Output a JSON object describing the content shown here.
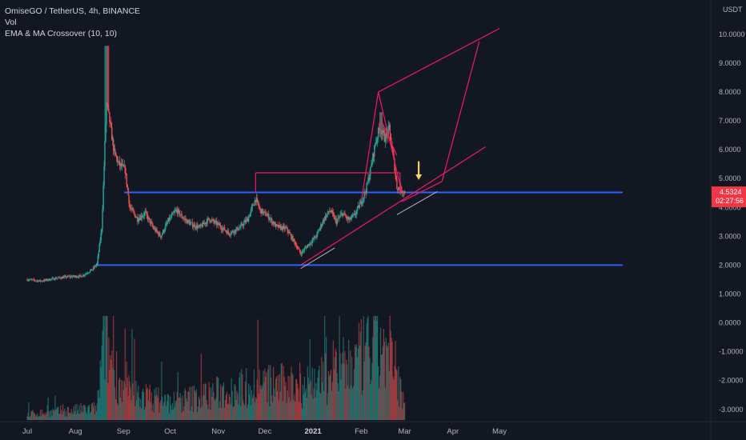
{
  "legend": {
    "symbol_line": "OmiseGO / TetherUS, 4h, BINANCE",
    "indicator_1": "Vol",
    "indicator_2": "EMA & MA Crossover (10, 10)"
  },
  "colors": {
    "background": "#131722",
    "up": "#26a69a",
    "down": "#ef5350",
    "horizontal_level": "#2962ff",
    "drawing": "#e91e63",
    "arrow": "#f5d06f",
    "price_tag": "#f23645",
    "trend_support": "#b2b5be"
  },
  "price_axis": {
    "unit": "USDT",
    "ticks": [
      "10.0000",
      "9.0000",
      "8.0000",
      "7.0000",
      "6.0000",
      "5.0000",
      "4.0000",
      "3.0000",
      "2.0000",
      "1.0000",
      "0.0000",
      "-1.0000",
      "-2.0000",
      "-3.0000"
    ]
  },
  "price_tag": {
    "price": "4.5324",
    "countdown": "02:27:56"
  },
  "chart_data": {
    "type": "candlestick",
    "x_axis_ticks": [
      {
        "label": "Jul",
        "month": "2020-07"
      },
      {
        "label": "Aug",
        "month": "2020-08"
      },
      {
        "label": "Sep",
        "month": "2020-09"
      },
      {
        "label": "Oct",
        "month": "2020-10"
      },
      {
        "label": "Nov",
        "month": "2020-11"
      },
      {
        "label": "Dec",
        "month": "2020-12"
      },
      {
        "label": "2021",
        "month": "2021-01",
        "bold": true
      },
      {
        "label": "Feb",
        "month": "2021-02"
      },
      {
        "label": "Mar",
        "month": "2021-03"
      },
      {
        "label": "Apr",
        "month": "2021-04"
      },
      {
        "label": "May",
        "month": "2021-05"
      }
    ],
    "y_range": [
      -3.2,
      10.3
    ],
    "price_path": [
      [
        "2020-07-01",
        1.5
      ],
      [
        "2020-07-10",
        1.45
      ],
      [
        "2020-07-20",
        1.55
      ],
      [
        "2020-07-28",
        1.6
      ],
      [
        "2020-08-05",
        1.62
      ],
      [
        "2020-08-12",
        1.85
      ],
      [
        "2020-08-15",
        2.05
      ],
      [
        "2020-08-18",
        3.3
      ],
      [
        "2020-08-21",
        7.6
      ],
      [
        "2020-08-23",
        7.0
      ],
      [
        "2020-08-26",
        5.9
      ],
      [
        "2020-08-29",
        5.5
      ],
      [
        "2020-09-02",
        5.3
      ],
      [
        "2020-09-05",
        4.0
      ],
      [
        "2020-09-10",
        3.6
      ],
      [
        "2020-09-15",
        3.8
      ],
      [
        "2020-09-20",
        3.3
      ],
      [
        "2020-09-25",
        3.0
      ],
      [
        "2020-09-30",
        3.55
      ],
      [
        "2020-10-05",
        3.9
      ],
      [
        "2020-10-10",
        3.6
      ],
      [
        "2020-10-15",
        3.4
      ],
      [
        "2020-10-20",
        3.3
      ],
      [
        "2020-10-26",
        3.6
      ],
      [
        "2020-11-01",
        3.4
      ],
      [
        "2020-11-08",
        3.1
      ],
      [
        "2020-11-15",
        3.3
      ],
      [
        "2020-11-20",
        3.6
      ],
      [
        "2020-11-25",
        4.3
      ],
      [
        "2020-11-28",
        3.9
      ],
      [
        "2020-12-03",
        3.7
      ],
      [
        "2020-12-08",
        3.35
      ],
      [
        "2020-12-15",
        3.25
      ],
      [
        "2020-12-20",
        2.8
      ],
      [
        "2020-12-24",
        2.4
      ],
      [
        "2020-12-28",
        2.65
      ],
      [
        "2021-01-03",
        3.0
      ],
      [
        "2021-01-08",
        3.6
      ],
      [
        "2021-01-12",
        3.9
      ],
      [
        "2021-01-16",
        3.5
      ],
      [
        "2021-01-20",
        3.8
      ],
      [
        "2021-01-24",
        3.55
      ],
      [
        "2021-01-28",
        3.75
      ],
      [
        "2021-02-01",
        4.2
      ],
      [
        "2021-02-04",
        4.6
      ],
      [
        "2021-02-07",
        5.3
      ],
      [
        "2021-02-10",
        6.2
      ],
      [
        "2021-02-13",
        6.8
      ],
      [
        "2021-02-16",
        6.4
      ],
      [
        "2021-02-19",
        6.7
      ],
      [
        "2021-02-22",
        5.6
      ],
      [
        "2021-02-24",
        4.7
      ],
      [
        "2021-02-27",
        4.6
      ],
      [
        "2021-03-01",
        4.5324
      ]
    ],
    "volume_path": [
      [
        "2020-07-01",
        0.05
      ],
      [
        "2020-08-15",
        0.1
      ],
      [
        "2020-08-20",
        0.8
      ],
      [
        "2020-08-23",
        0.55
      ],
      [
        "2020-09-01",
        0.25
      ],
      [
        "2020-10-01",
        0.15
      ],
      [
        "2020-11-25",
        0.3
      ],
      [
        "2020-12-24",
        0.3
      ],
      [
        "2021-01-10",
        0.35
      ],
      [
        "2021-02-10",
        0.6
      ],
      [
        "2021-02-14",
        0.65
      ],
      [
        "2021-02-24",
        0.4
      ],
      [
        "2021-03-01",
        0.1
      ]
    ],
    "horizontal_levels": [
      4.52,
      2.0
    ],
    "drawings": [
      {
        "kind": "line",
        "from": [
          "2020-11-25",
          5.2
        ],
        "to": [
          "2021-02-26",
          5.2
        ]
      },
      {
        "kind": "line",
        "from": [
          "2020-11-25",
          5.2
        ],
        "to": [
          "2020-11-25",
          4.5
        ]
      },
      {
        "kind": "line",
        "from": [
          "2021-02-26",
          5.2
        ],
        "to": [
          "2021-02-26",
          4.5
        ]
      },
      {
        "kind": "line",
        "from": [
          "2020-12-24",
          2.0
        ],
        "to": [
          "2021-04-22",
          6.1
        ]
      },
      {
        "kind": "line",
        "from": [
          "2021-02-12",
          8.0
        ],
        "to": [
          "2021-05-01",
          10.2
        ]
      },
      {
        "kind": "line",
        "from": [
          "2021-02-12",
          8.0
        ],
        "to": [
          "2021-02-01",
          4.2
        ]
      },
      {
        "kind": "line",
        "from": [
          "2021-02-12",
          8.0
        ],
        "to": [
          "2021-02-27",
          4.55
        ]
      },
      {
        "kind": "line",
        "from": [
          "2021-02-14",
          7.0
        ],
        "to": [
          "2021-02-24",
          5.8
        ]
      },
      {
        "kind": "line",
        "from": [
          "2021-02-27",
          4.2
        ],
        "to": [
          "2021-03-25",
          4.9
        ]
      },
      {
        "kind": "line",
        "from": [
          "2021-03-25",
          4.9
        ],
        "to": [
          "2021-04-18",
          9.75
        ]
      }
    ],
    "trend_support": [
      {
        "from": [
          "2020-12-24",
          1.88
        ],
        "to": [
          "2021-01-15",
          2.6
        ]
      },
      {
        "from": [
          "2021-02-24",
          3.75
        ],
        "to": [
          "2021-03-22",
          4.55
        ]
      }
    ],
    "arrow": {
      "date": "2021-03-10",
      "from": 5.6,
      "to": 4.95
    }
  }
}
